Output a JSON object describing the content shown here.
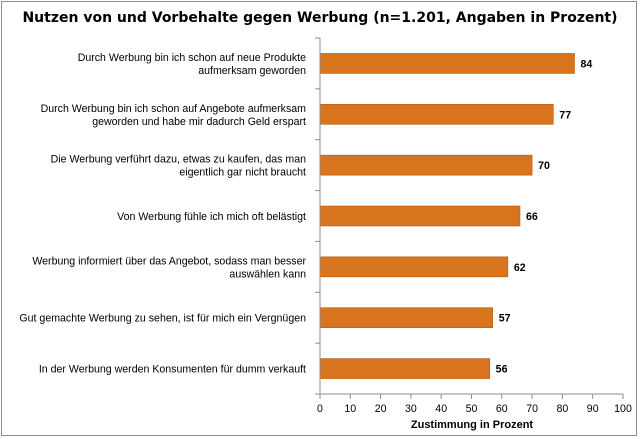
{
  "chart_data": {
    "type": "bar",
    "orientation": "horizontal",
    "title": "Nutzen von und Vorbehalte gegen Werbung (n=1.201, Angaben in Prozent)",
    "xlabel": "Zustimmung in Prozent",
    "ylabel": "",
    "xlim": [
      0,
      100
    ],
    "xticks": [
      "0",
      "10",
      "20",
      "30",
      "40",
      "50",
      "60",
      "70",
      "80",
      "90",
      "100"
    ],
    "grid": false,
    "legend": "none",
    "bar_color": "#D9741E",
    "categories": [
      [
        "Durch Werbung bin ich schon auf neue Produkte",
        "aufmerksam geworden"
      ],
      [
        "Durch Werbung bin ich schon auf Angebote aufmerksam",
        "geworden und habe mir dadurch Geld erspart"
      ],
      [
        "Die Werbung verführt dazu, etwas zu kaufen, das man",
        "eigentlich gar nicht braucht"
      ],
      [
        "Von Werbung fühle ich mich oft belästigt"
      ],
      [
        "Werbung informiert über das Angebot, sodass man besser",
        "auswählen kann"
      ],
      [
        "Gut gemachte Werbung zu sehen, ist für mich ein Vergnügen"
      ],
      [
        "In der Werbung werden Konsumenten für dumm verkauft"
      ]
    ],
    "values": [
      84,
      77,
      70,
      66,
      62,
      57,
      56
    ]
  }
}
